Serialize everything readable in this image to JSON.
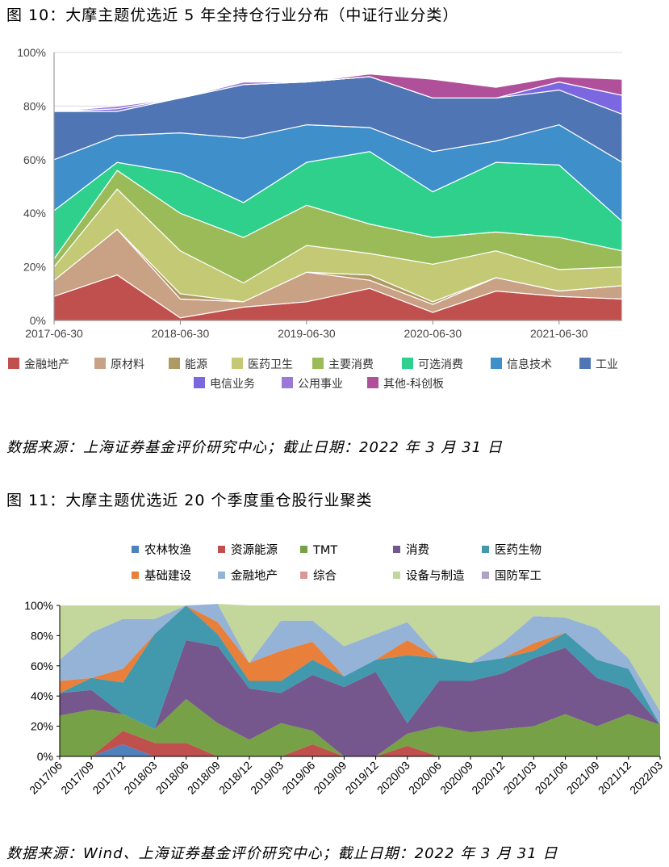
{
  "figure1": {
    "title": "图 10：大摩主题优选近 5 年全持仓行业分布（中证行业分类）",
    "source": "数据来源：上海证券基金评价研究中心；截止日期：2022 年 3 月 31 日"
  },
  "figure2": {
    "title": "图 11：大摩主题优选近 20 个季度重仓股行业聚类",
    "source": "数据来源：Wind、上海证券基金评价研究中心；截止日期：2022 年 3 月 31 日"
  },
  "chart_data": [
    {
      "type": "area",
      "stacked": true,
      "x": [
        "2017-06-30",
        "2017-12-31",
        "2018-06-30",
        "2018-12-31",
        "2019-06-30",
        "2019-12-31",
        "2020-06-30",
        "2020-12-31",
        "2021-06-30",
        "2021-12-31"
      ],
      "x_tick_labels": [
        "2017-06-30",
        "2018-06-30",
        "2019-06-30",
        "2020-06-30",
        "2021-06-30"
      ],
      "y_tick_labels": [
        "0%",
        "20%",
        "40%",
        "60%",
        "80%",
        "100%"
      ],
      "ylim": [
        0,
        100
      ],
      "grid": true,
      "legend_position": "bottom",
      "series": [
        {
          "name": "金融地产",
          "color": "#c0504d",
          "values": [
            9,
            17,
            1,
            5,
            7,
            12,
            3,
            11,
            9,
            8
          ]
        },
        {
          "name": "原材料",
          "color": "#c9a184",
          "values": [
            6,
            17,
            7,
            2,
            11,
            3,
            3,
            5,
            2,
            5
          ]
        },
        {
          "name": "能源",
          "color": "#b09a63",
          "values": [
            0,
            0,
            2,
            0,
            0,
            2,
            1,
            0,
            0,
            0
          ]
        },
        {
          "name": "医药卫生",
          "color": "#c3c975",
          "values": [
            5,
            15,
            16,
            7,
            10,
            8,
            14,
            10,
            8,
            7
          ]
        },
        {
          "name": "主要消费",
          "color": "#9bbb59",
          "values": [
            3,
            7,
            14,
            17,
            15,
            11,
            10,
            7,
            12,
            6
          ]
        },
        {
          "name": "可选消费",
          "color": "#2ed08c",
          "values": [
            18,
            3,
            15,
            13,
            16,
            27,
            17,
            26,
            27,
            11
          ]
        },
        {
          "name": "信息技术",
          "color": "#3f8fca",
          "values": [
            19,
            10,
            15,
            24,
            14,
            9,
            15,
            8,
            15,
            22
          ]
        },
        {
          "name": "工业",
          "color": "#4f75b5",
          "values": [
            18,
            9,
            13,
            20,
            16,
            19,
            20,
            16,
            13,
            18
          ]
        },
        {
          "name": "电信业务",
          "color": "#7b68e0",
          "values": [
            0,
            1,
            0,
            0,
            0,
            0,
            0,
            0,
            3,
            7
          ]
        },
        {
          "name": "公用事业",
          "color": "#9a7ad6",
          "values": [
            0,
            1,
            0,
            1,
            0,
            0,
            0,
            0,
            0,
            0
          ]
        },
        {
          "name": "其他-科创板",
          "color": "#b0509a",
          "values": [
            0,
            0,
            0,
            0,
            0,
            1,
            7,
            4,
            2,
            6
          ]
        }
      ]
    },
    {
      "type": "area",
      "stacked": true,
      "x": [
        "2017/06",
        "2017/09",
        "2017/12",
        "2018/03",
        "2018/06",
        "2018/09",
        "2018/12",
        "2019/03",
        "2019/06",
        "2019/09",
        "2019/12",
        "2020/03",
        "2020/06",
        "2020/09",
        "2020/12",
        "2021/03",
        "2021/06",
        "2021/09",
        "2021/12",
        "2022/03"
      ],
      "y_tick_labels": [
        "0%",
        "20%",
        "40%",
        "60%",
        "80%",
        "100%"
      ],
      "ylim": [
        0,
        100
      ],
      "legend_position": "top",
      "series": [
        {
          "name": "农林牧渔",
          "color": "#4f81bd",
          "values": [
            0,
            0,
            8,
            0,
            0,
            0,
            0,
            0,
            0,
            0,
            0,
            0,
            0,
            0,
            0,
            0,
            0,
            0,
            0,
            0
          ]
        },
        {
          "name": "资源能源",
          "color": "#c0504d",
          "values": [
            0,
            0,
            9,
            9,
            9,
            0,
            0,
            0,
            8,
            0,
            0,
            7,
            0,
            0,
            0,
            0,
            0,
            0,
            0,
            0
          ]
        },
        {
          "name": "TMT",
          "color": "#77a146",
          "values": [
            27,
            31,
            11,
            9,
            29,
            22,
            11,
            22,
            9,
            0,
            0,
            8,
            20,
            16,
            18,
            20,
            28,
            20,
            28,
            21
          ]
        },
        {
          "name": "消费",
          "color": "#76578d",
          "values": [
            15,
            13,
            0,
            0,
            39,
            51,
            34,
            20,
            37,
            46,
            56,
            7,
            30,
            34,
            37,
            45,
            44,
            32,
            17,
            0
          ]
        },
        {
          "name": "医药生物",
          "color": "#4298ad",
          "values": [
            0,
            8,
            21,
            63,
            23,
            8,
            5,
            8,
            10,
            7,
            8,
            45,
            15,
            12,
            10,
            5,
            10,
            12,
            13,
            0
          ]
        },
        {
          "name": "基础建设",
          "color": "#e87f3a",
          "values": [
            8,
            0,
            9,
            0,
            0,
            8,
            12,
            20,
            12,
            0,
            0,
            10,
            0,
            0,
            0,
            5,
            0,
            0,
            0,
            0
          ]
        },
        {
          "name": "金融地产",
          "color": "#95b3d7",
          "values": [
            14,
            30,
            33,
            10,
            0,
            12,
            0,
            20,
            14,
            20,
            17,
            12,
            0,
            0,
            10,
            18,
            10,
            21,
            7,
            9
          ]
        },
        {
          "name": "综合",
          "color": "#d99694",
          "values": [
            0,
            0,
            0,
            0,
            0,
            0,
            0,
            0,
            0,
            0,
            0,
            0,
            0,
            0,
            0,
            0,
            0,
            0,
            0,
            0
          ]
        },
        {
          "name": "设备与制造",
          "color": "#c3d69b",
          "values": [
            36,
            18,
            9,
            9,
            0,
            0,
            38,
            10,
            10,
            27,
            19,
            11,
            35,
            38,
            25,
            7,
            8,
            15,
            35,
            70
          ]
        },
        {
          "name": "国防军工",
          "color": "#b3a2c7",
          "values": [
            0,
            0,
            0,
            0,
            0,
            0,
            0,
            0,
            0,
            0,
            0,
            0,
            0,
            0,
            0,
            0,
            0,
            0,
            0,
            0
          ]
        }
      ]
    }
  ]
}
